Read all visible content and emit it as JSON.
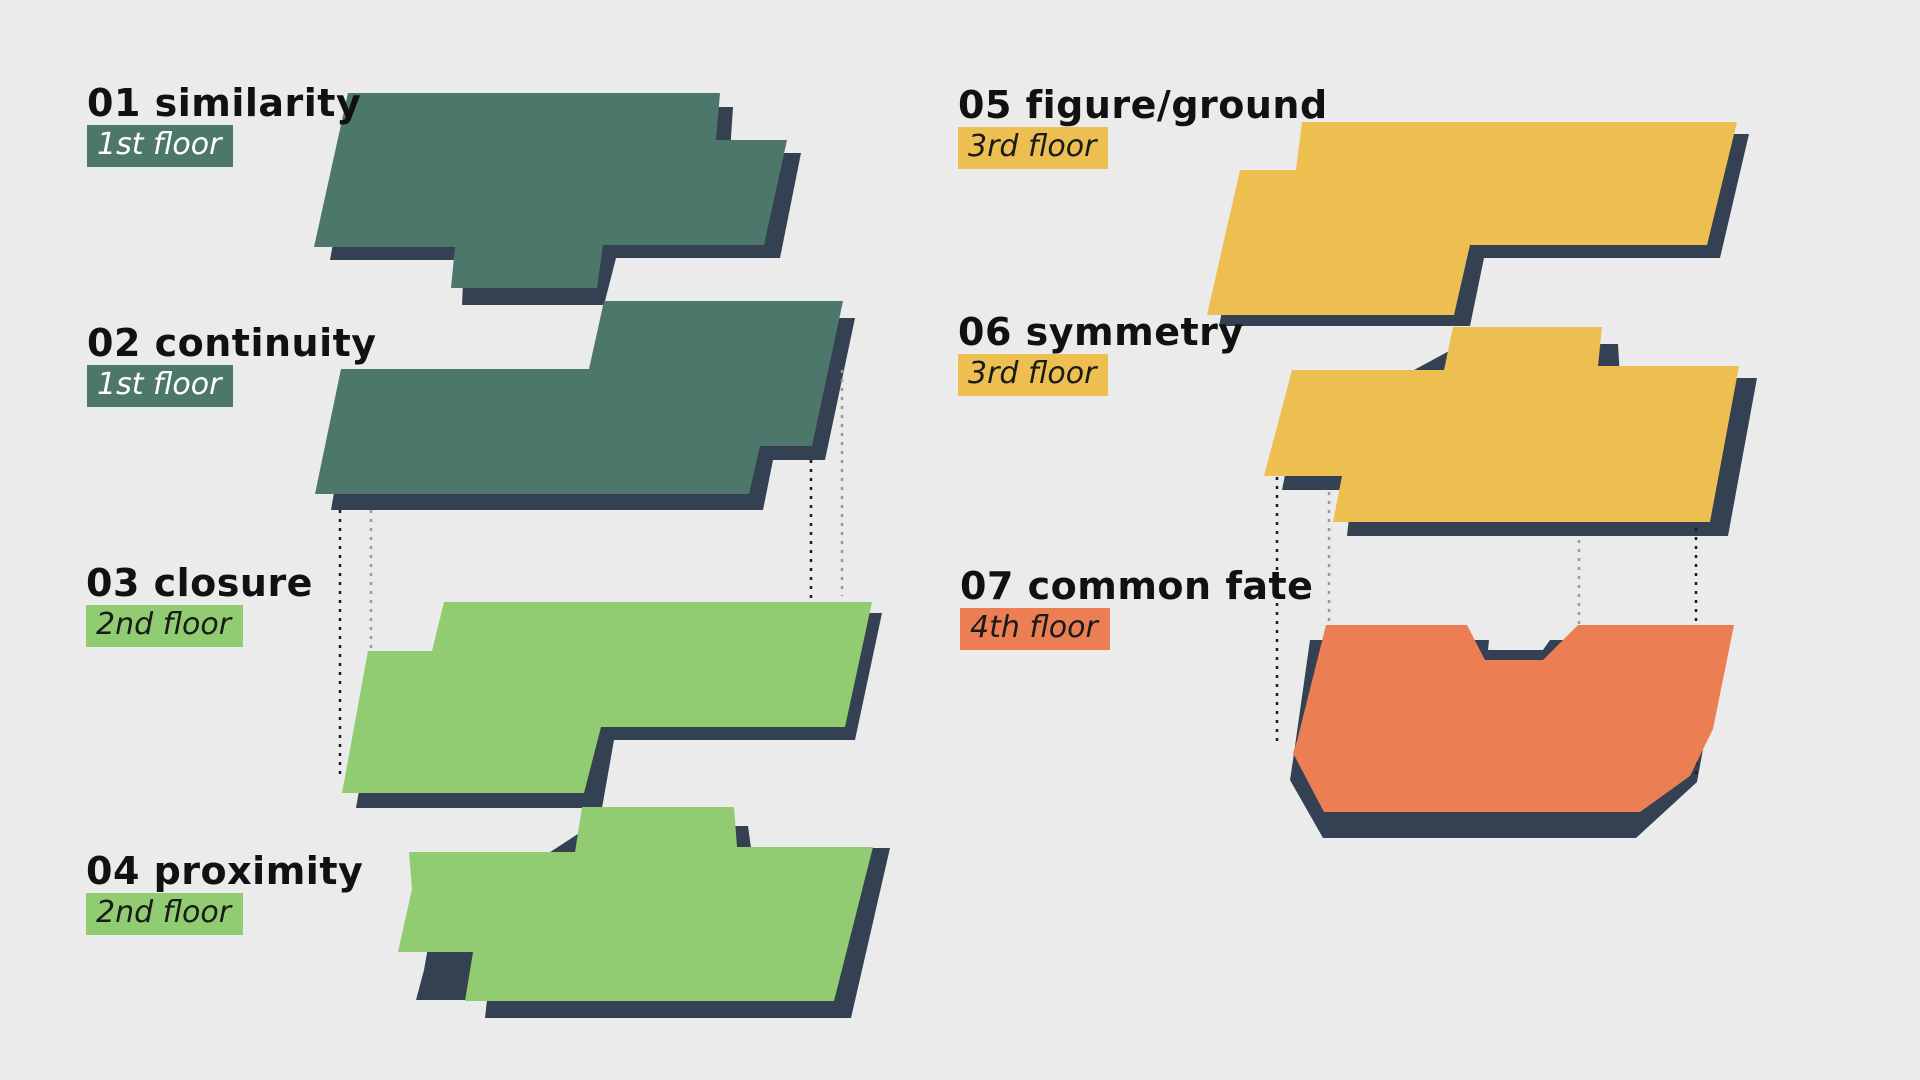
{
  "colors": {
    "background": "#ebebeb",
    "shadow": "#334152",
    "floor_1": "#4e776b",
    "floor_2": "#92cc72",
    "floor_3": "#edbf51",
    "floor_4": "#ec7e53",
    "tag_text_dark": "#1a1a1a",
    "tag_text_light": "#ffffff"
  },
  "principles": [
    {
      "number": "01",
      "name": "similarity",
      "title": "01 similarity",
      "floor": "1st floor"
    },
    {
      "number": "02",
      "name": "continuity",
      "title": "02 continuity",
      "floor": "1st floor"
    },
    {
      "number": "03",
      "name": "closure",
      "title": "03 closure",
      "floor": "2nd floor"
    },
    {
      "number": "04",
      "name": "proximity",
      "title": "04 proximity",
      "floor": "2nd floor"
    },
    {
      "number": "05",
      "name": "figure/ground",
      "title": "05 figure/ground",
      "floor": "3rd floor"
    },
    {
      "number": "06",
      "name": "symmetry",
      "title": "06 symmetry",
      "floor": "3rd floor"
    },
    {
      "number": "07",
      "name": "common fate",
      "title": "07 common fate",
      "floor": "4th floor"
    }
  ]
}
